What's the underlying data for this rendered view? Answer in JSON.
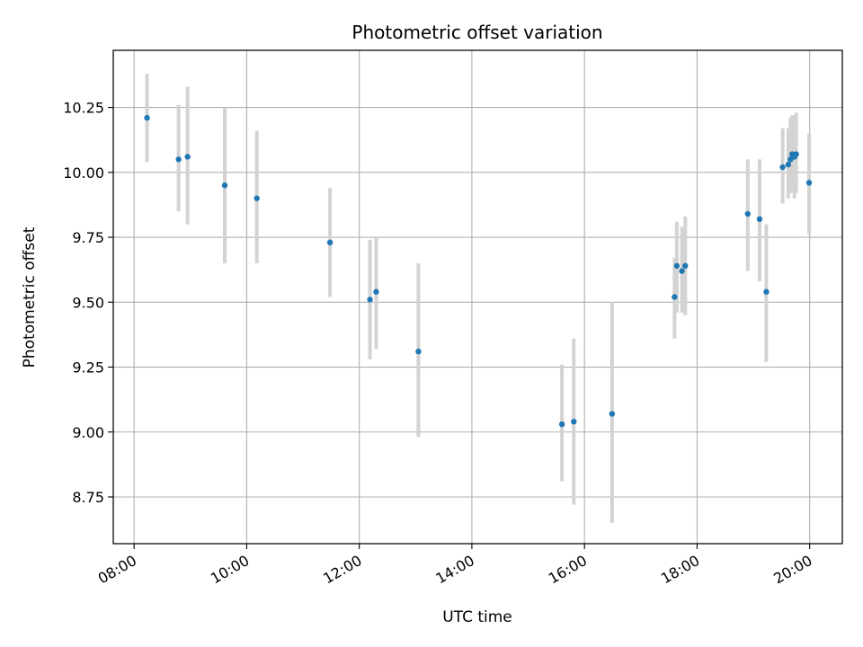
{
  "chart_data": {
    "type": "scatter",
    "title": "Photometric offset variation",
    "xlabel": "UTC time",
    "ylabel": "Photometric offset",
    "x_axis": {
      "unit": "hours UTC",
      "range": [
        7.63,
        20.58
      ],
      "ticks": [
        {
          "value": 8,
          "label": "08:00"
        },
        {
          "value": 10,
          "label": "10:00"
        },
        {
          "value": 12,
          "label": "12:00"
        },
        {
          "value": 14,
          "label": "14:00"
        },
        {
          "value": 16,
          "label": "16:00"
        },
        {
          "value": 18,
          "label": "18:00"
        },
        {
          "value": 20,
          "label": "20:00"
        }
      ]
    },
    "y_axis": {
      "range": [
        8.57,
        10.47
      ],
      "ticks": [
        {
          "value": 8.75,
          "label": "8.75"
        },
        {
          "value": 9.0,
          "label": "9.00"
        },
        {
          "value": 9.25,
          "label": "9.25"
        },
        {
          "value": 9.5,
          "label": "9.50"
        },
        {
          "value": 9.75,
          "label": "9.75"
        },
        {
          "value": 10.0,
          "label": "10.00"
        },
        {
          "value": 10.25,
          "label": "10.25"
        }
      ]
    },
    "grid": true,
    "colors": {
      "points": "#1f77b4",
      "errorbars": "#d3d3d3",
      "grid": "#b0b0b0"
    },
    "points": [
      {
        "x": 8.23,
        "y": 10.21,
        "lo": 10.04,
        "hi": 10.38
      },
      {
        "x": 8.79,
        "y": 10.05,
        "lo": 9.85,
        "hi": 10.26
      },
      {
        "x": 8.95,
        "y": 10.06,
        "lo": 9.8,
        "hi": 10.33
      },
      {
        "x": 9.61,
        "y": 9.95,
        "lo": 9.65,
        "hi": 10.25
      },
      {
        "x": 10.18,
        "y": 9.9,
        "lo": 9.65,
        "hi": 10.16
      },
      {
        "x": 11.48,
        "y": 9.73,
        "lo": 9.52,
        "hi": 9.94
      },
      {
        "x": 12.19,
        "y": 9.51,
        "lo": 9.28,
        "hi": 9.74
      },
      {
        "x": 12.3,
        "y": 9.54,
        "lo": 9.32,
        "hi": 9.75
      },
      {
        "x": 13.05,
        "y": 9.31,
        "lo": 8.98,
        "hi": 9.65
      },
      {
        "x": 15.6,
        "y": 9.03,
        "lo": 8.81,
        "hi": 9.26
      },
      {
        "x": 15.81,
        "y": 9.04,
        "lo": 8.72,
        "hi": 9.36
      },
      {
        "x": 16.49,
        "y": 9.07,
        "lo": 8.65,
        "hi": 9.5
      },
      {
        "x": 17.6,
        "y": 9.52,
        "lo": 9.36,
        "hi": 9.67
      },
      {
        "x": 17.64,
        "y": 9.64,
        "lo": 9.46,
        "hi": 9.81
      },
      {
        "x": 17.73,
        "y": 9.62,
        "lo": 9.46,
        "hi": 9.79
      },
      {
        "x": 17.79,
        "y": 9.64,
        "lo": 9.45,
        "hi": 9.83
      },
      {
        "x": 18.9,
        "y": 9.84,
        "lo": 9.62,
        "hi": 10.05
      },
      {
        "x": 19.11,
        "y": 9.82,
        "lo": 9.58,
        "hi": 10.05
      },
      {
        "x": 19.23,
        "y": 9.54,
        "lo": 9.27,
        "hi": 9.8
      },
      {
        "x": 19.52,
        "y": 10.02,
        "lo": 9.88,
        "hi": 10.17
      },
      {
        "x": 19.62,
        "y": 10.03,
        "lo": 9.9,
        "hi": 10.17
      },
      {
        "x": 19.66,
        "y": 10.05,
        "lo": 9.92,
        "hi": 10.21
      },
      {
        "x": 19.69,
        "y": 10.07,
        "lo": 9.93,
        "hi": 10.22
      },
      {
        "x": 19.73,
        "y": 10.06,
        "lo": 9.9,
        "hi": 10.22
      },
      {
        "x": 19.76,
        "y": 10.07,
        "lo": 9.92,
        "hi": 10.23
      },
      {
        "x": 19.99,
        "y": 9.96,
        "lo": 9.76,
        "hi": 10.15
      }
    ]
  }
}
